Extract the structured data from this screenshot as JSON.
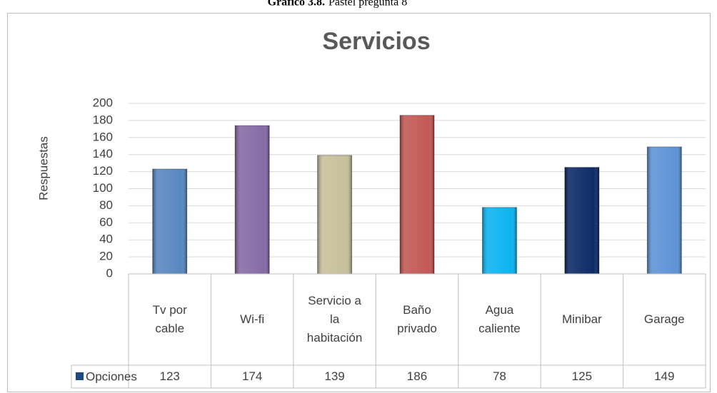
{
  "caption_label": "Gráfico 3.8.",
  "caption_text": "Pastel pregunta 8",
  "chart_data": {
    "type": "bar",
    "title": "Servicios",
    "y_label": "Respuestas",
    "categories": [
      "Tv por cable",
      "Wi-fi",
      "Servicio a la habitación",
      "Baño privado",
      "Agua caliente",
      "Minibar",
      "Garage"
    ],
    "series": [
      {
        "name": "Opciones",
        "color": "#1f497d",
        "colors": [
          "#4f81bd",
          "#8064a2",
          "#c4bd97",
          "#c0504d",
          "#00b0f0",
          "#002060",
          "#558ed5"
        ],
        "values": [
          123,
          174,
          139,
          186,
          78,
          125,
          149
        ]
      }
    ],
    "ylim": [
      0,
      200
    ],
    "yticks": [
      0,
      20,
      40,
      60,
      80,
      100,
      120,
      140,
      160,
      180,
      200
    ],
    "grid": true
  }
}
